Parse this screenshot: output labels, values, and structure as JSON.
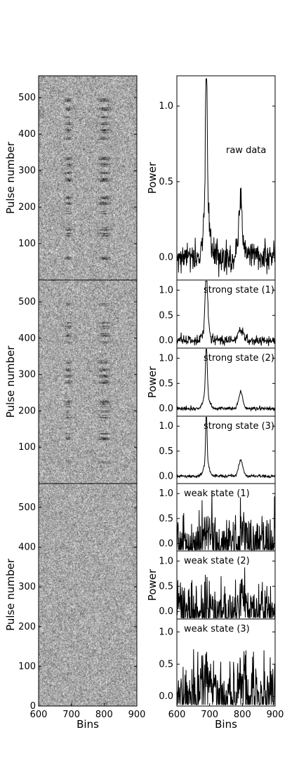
{
  "chart_data": [
    {
      "type": "heatmap",
      "xlabel": "",
      "ylabel": "Pulse number",
      "xlim": [
        600,
        900
      ],
      "ylim": [
        0,
        560
      ],
      "yticks": [
        100,
        200,
        300,
        400,
        500
      ],
      "xticks": [],
      "description_of_bands": "pulse number vs bins greyscale image with two emission regions",
      "emission_regions": [
        {
          "center_bin": 690,
          "width_bins": 20
        },
        {
          "center_bin": 800,
          "width_bins": 35
        }
      ],
      "bright_pulses": [
        60,
        125,
        140,
        185,
        210,
        225,
        275,
        295,
        315,
        335,
        390,
        410,
        430,
        445,
        470,
        495
      ]
    },
    {
      "type": "heatmap",
      "xlabel": "",
      "ylabel": "Pulse number",
      "xlim": [
        600,
        900
      ],
      "ylim": [
        0,
        560
      ],
      "yticks": [
        100,
        200,
        300,
        400,
        500
      ],
      "xticks": [],
      "emission_regions": [
        {
          "center_bin": 690,
          "width_bins": 20
        },
        {
          "center_bin": 800,
          "width_bins": 35
        }
      ],
      "bright_pulses": [
        55,
        65,
        125,
        140,
        185,
        200,
        215,
        225,
        280,
        295,
        315,
        335,
        390,
        410,
        430,
        445,
        495
      ]
    },
    {
      "type": "heatmap",
      "xlabel": "Bins",
      "ylabel": "Pulse number",
      "xlim": [
        600,
        900
      ],
      "ylim": [
        0,
        560
      ],
      "yticks": [
        0,
        100,
        200,
        300,
        400,
        500
      ],
      "xticks": [
        600,
        700,
        800,
        900
      ],
      "emission_regions": [],
      "bright_pulses": []
    },
    {
      "type": "line",
      "label": "raw data",
      "xlabel": "",
      "ylabel": "Power",
      "xlim": [
        600,
        900
      ],
      "ylim": [
        -0.15,
        1.2
      ],
      "yticks": [
        0.0,
        0.5,
        1.0
      ],
      "xticks": [],
      "noise": 0.05,
      "peaks": [
        {
          "center_bin": 690,
          "height": 1.0,
          "width_bins": 6
        },
        {
          "center_bin": 690,
          "height": 0.35,
          "width_bins": 20
        },
        {
          "center_bin": 795,
          "height": 0.33,
          "width_bins": 16
        }
      ]
    },
    {
      "type": "line",
      "label": "strong state (1)",
      "xlabel": "",
      "ylabel": "",
      "xlim": [
        600,
        900
      ],
      "ylim": [
        -0.15,
        1.2
      ],
      "yticks": [
        0.0,
        0.5,
        1.0
      ],
      "xticks": [],
      "noise": 0.05,
      "peaks": [
        {
          "center_bin": 690,
          "height": 1.0,
          "width_bins": 8
        },
        {
          "center_bin": 690,
          "height": 0.35,
          "width_bins": 20
        },
        {
          "center_bin": 795,
          "height": 0.23,
          "width_bins": 18
        }
      ]
    },
    {
      "type": "line",
      "label": "strong state (2)",
      "xlabel": "",
      "ylabel": "Power",
      "xlim": [
        600,
        900
      ],
      "ylim": [
        -0.15,
        1.2
      ],
      "yticks": [
        0.0,
        0.5,
        1.0
      ],
      "xticks": [],
      "noise": 0.02,
      "peaks": [
        {
          "center_bin": 690,
          "height": 1.0,
          "width_bins": 6
        },
        {
          "center_bin": 690,
          "height": 0.3,
          "width_bins": 20
        },
        {
          "center_bin": 795,
          "height": 0.32,
          "width_bins": 15
        }
      ]
    },
    {
      "type": "line",
      "label": "strong state (3)",
      "xlabel": "",
      "ylabel": "",
      "xlim": [
        600,
        900
      ],
      "ylim": [
        -0.15,
        1.2
      ],
      "yticks": [
        0.0,
        0.5,
        1.0
      ],
      "xticks": [],
      "noise": 0.015,
      "peaks": [
        {
          "center_bin": 690,
          "height": 1.0,
          "width_bins": 5
        },
        {
          "center_bin": 690,
          "height": 0.3,
          "width_bins": 18
        },
        {
          "center_bin": 795,
          "height": 0.32,
          "width_bins": 15
        }
      ]
    },
    {
      "type": "line",
      "label": "weak state (1)",
      "xlabel": "",
      "ylabel": "",
      "xlim": [
        600,
        900
      ],
      "ylim": [
        -0.15,
        1.2
      ],
      "yticks": [
        0.0,
        0.5,
        1.0
      ],
      "xticks": [],
      "noise": 0.3,
      "peaks": [
        {
          "center_bin": 690,
          "height": 0.25,
          "width_bins": 25
        },
        {
          "center_bin": 800,
          "height": 0.35,
          "width_bins": 20
        }
      ]
    },
    {
      "type": "line",
      "label": "weak state (2)",
      "xlabel": "",
      "ylabel": "Power",
      "xlim": [
        600,
        900
      ],
      "ylim": [
        -0.15,
        1.2
      ],
      "yticks": [
        0.0,
        0.5,
        1.0
      ],
      "xticks": [],
      "noise": 0.28,
      "peaks": [
        {
          "center_bin": 690,
          "height": 0.15,
          "width_bins": 25
        },
        {
          "center_bin": 800,
          "height": 0.35,
          "width_bins": 20
        }
      ]
    },
    {
      "type": "line",
      "label": "weak state (3)",
      "xlabel": "Bins",
      "ylabel": "",
      "xlim": [
        600,
        900
      ],
      "ylim": [
        -0.15,
        1.2
      ],
      "yticks": [
        0.0,
        0.5,
        1.0
      ],
      "xticks": [
        600,
        700,
        800,
        900
      ],
      "noise": 0.25,
      "peaks": [
        {
          "center_bin": 690,
          "height": 0.3,
          "width_bins": 25
        },
        {
          "center_bin": 800,
          "height": 0.35,
          "width_bins": 20
        }
      ]
    }
  ]
}
